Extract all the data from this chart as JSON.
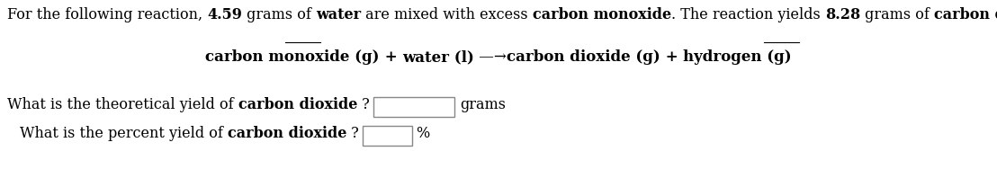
{
  "background_color": "#ffffff",
  "line1_parts": [
    {
      "text": "For the following reaction, ",
      "bold": false,
      "underline": false
    },
    {
      "text": "4.59",
      "bold": true,
      "underline": true
    },
    {
      "text": " grams of ",
      "bold": false,
      "underline": false
    },
    {
      "text": "water",
      "bold": true,
      "underline": false
    },
    {
      "text": " are mixed with excess ",
      "bold": false,
      "underline": false
    },
    {
      "text": "carbon monoxide",
      "bold": true,
      "underline": false
    },
    {
      "text": ". The reaction yields ",
      "bold": false,
      "underline": false
    },
    {
      "text": "8.28",
      "bold": true,
      "underline": true
    },
    {
      "text": " grams of ",
      "bold": false,
      "underline": false
    },
    {
      "text": "carbon dioxide",
      "bold": true,
      "underline": false
    },
    {
      "text": ".",
      "bold": false,
      "underline": false
    }
  ],
  "equation_parts": [
    {
      "text": "carbon monoxide (g)",
      "bold": true
    },
    {
      "text": " + ",
      "bold": true
    },
    {
      "text": "water (l)",
      "bold": true
    },
    {
      "text": " —→",
      "bold": false
    },
    {
      "text": "carbon dioxide (g)",
      "bold": true
    },
    {
      "text": " + ",
      "bold": true
    },
    {
      "text": "hydrogen (g)",
      "bold": true
    }
  ],
  "q1_label_parts": [
    {
      "text": "What is the theoretical yield of ",
      "bold": false
    },
    {
      "text": "carbon dioxide",
      "bold": true
    },
    {
      "text": " ?",
      "bold": false
    }
  ],
  "q2_label_parts": [
    {
      "text": "What is the percent yield of ",
      "bold": false
    },
    {
      "text": "carbon dioxide",
      "bold": true
    },
    {
      "text": " ?",
      "bold": false
    }
  ],
  "q1_unit": "grams",
  "q2_unit": "%",
  "font_size": 11.5,
  "eq_font_size": 12,
  "fig_width": 11.08,
  "fig_height": 1.88,
  "dpi": 100
}
